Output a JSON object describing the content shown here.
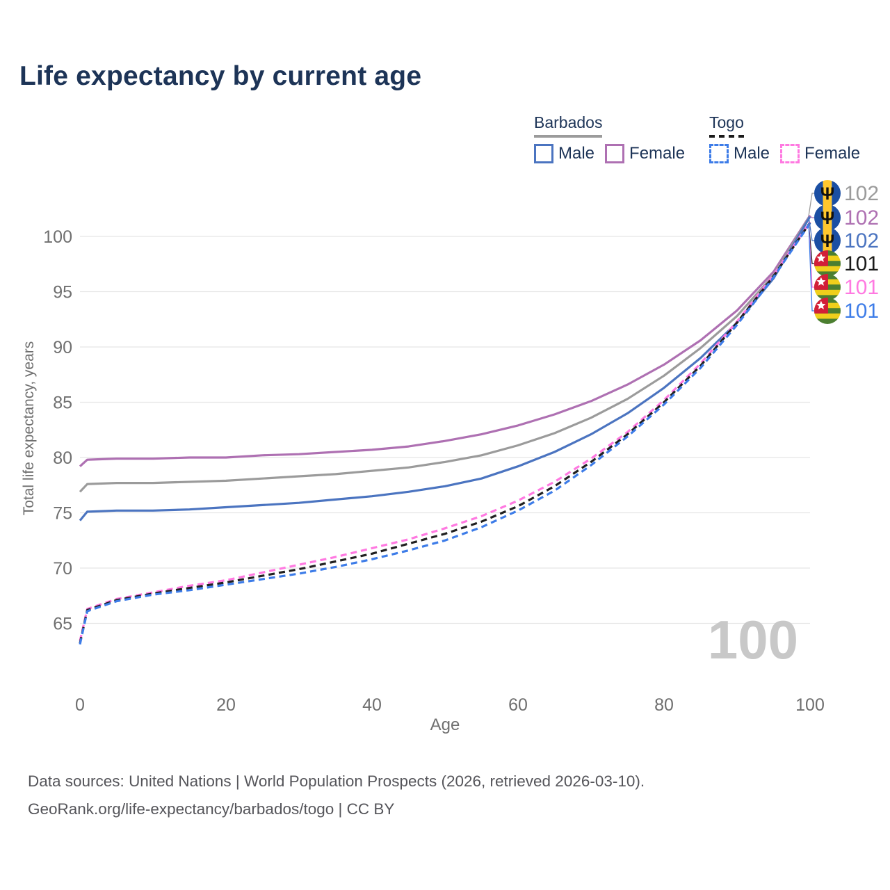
{
  "title": "Life expectancy by current age",
  "watermark": "100",
  "legend": {
    "groups": [
      {
        "country": "Barbados",
        "line_style": "solid",
        "underline_color": "#9b9b9b",
        "items": [
          {
            "label": "Male",
            "color": "#4b74c0",
            "dashed": false
          },
          {
            "label": "Female",
            "color": "#ae70b2",
            "dashed": false
          }
        ]
      },
      {
        "country": "Togo",
        "line_style": "dashed",
        "underline_color": "#1a1a1a",
        "items": [
          {
            "label": "Male",
            "color": "#3d7ce8",
            "dashed": true
          },
          {
            "label": "Female",
            "color": "#ff79e1",
            "dashed": true
          }
        ]
      }
    ]
  },
  "x_axis": {
    "label": "Age",
    "ticks": [
      0,
      20,
      40,
      60,
      80,
      100
    ],
    "range": [
      0,
      100
    ]
  },
  "y_axis": {
    "label": "Total life expectancy, years",
    "ticks": [
      65,
      70,
      75,
      80,
      85,
      90,
      95,
      100
    ],
    "range": [
      62.5,
      103
    ]
  },
  "end_labels": [
    {
      "flag": "barbados",
      "series": "barbados_both",
      "value": "102",
      "color": "#9b9b9b"
    },
    {
      "flag": "barbados",
      "series": "barbados_female",
      "value": "102",
      "color": "#ae70b2"
    },
    {
      "flag": "barbados",
      "series": "barbados_male",
      "value": "102",
      "color": "#4b74c0"
    },
    {
      "flag": "togo",
      "series": "togo_both",
      "value": "101",
      "color": "#1a1a1a"
    },
    {
      "flag": "togo",
      "series": "togo_female",
      "value": "101",
      "color": "#ff79e1"
    },
    {
      "flag": "togo",
      "series": "togo_male",
      "value": "101",
      "color": "#3d7ce8"
    }
  ],
  "footer": {
    "line1": "Data sources: United Nations | World Population Prospects (2026, retrieved 2026-03-10).",
    "line2": "GeoRank.org/life-expectancy/barbados/togo | CC BY"
  },
  "chart_data": {
    "type": "line",
    "xlabel": "Age",
    "ylabel": "Total life expectancy, years",
    "xlim": [
      0,
      100
    ],
    "ylim": [
      62.5,
      103
    ],
    "grid": "horizontal",
    "x": [
      0,
      1,
      5,
      10,
      15,
      20,
      25,
      30,
      35,
      40,
      45,
      50,
      55,
      60,
      65,
      70,
      75,
      80,
      85,
      90,
      95,
      100
    ],
    "series": [
      {
        "name": "Barbados Female",
        "key": "barbados_female",
        "color": "#ae70b2",
        "dash": null,
        "values": [
          79.2,
          79.8,
          79.9,
          79.9,
          80.0,
          80.0,
          80.2,
          80.3,
          80.5,
          80.7,
          81.0,
          81.5,
          82.1,
          82.9,
          83.9,
          85.1,
          86.6,
          88.4,
          90.6,
          93.3,
          96.8,
          101.9
        ]
      },
      {
        "name": "Barbados Both sexes",
        "key": "barbados_both",
        "color": "#9b9b9b",
        "dash": null,
        "values": [
          76.9,
          77.6,
          77.7,
          77.7,
          77.8,
          77.9,
          78.1,
          78.3,
          78.5,
          78.8,
          79.1,
          79.6,
          80.2,
          81.1,
          82.2,
          83.6,
          85.3,
          87.4,
          89.9,
          92.8,
          96.5,
          101.85
        ]
      },
      {
        "name": "Barbados Male",
        "key": "barbados_male",
        "color": "#4b74c0",
        "dash": null,
        "values": [
          74.3,
          75.1,
          75.2,
          75.2,
          75.3,
          75.5,
          75.7,
          75.9,
          76.2,
          76.5,
          76.9,
          77.4,
          78.1,
          79.2,
          80.5,
          82.1,
          84.0,
          86.3,
          89.0,
          92.2,
          96.2,
          101.8
        ]
      },
      {
        "name": "Togo Female",
        "key": "togo_female",
        "color": "#ff79e1",
        "dash": "9 6",
        "values": [
          63.4,
          66.3,
          67.2,
          67.8,
          68.4,
          68.9,
          69.6,
          70.3,
          71.0,
          71.8,
          72.6,
          73.6,
          74.7,
          76.1,
          77.8,
          79.9,
          82.3,
          85.2,
          88.5,
          92.3,
          96.5,
          101.3
        ]
      },
      {
        "name": "Togo Both sexes",
        "key": "togo_both",
        "color": "#202020",
        "dash": "9 6",
        "values": [
          63.2,
          66.2,
          67.1,
          67.7,
          68.2,
          68.7,
          69.3,
          69.9,
          70.6,
          71.3,
          72.2,
          73.1,
          74.2,
          75.6,
          77.4,
          79.6,
          82.1,
          85.0,
          88.3,
          92.2,
          96.4,
          101.25
        ]
      },
      {
        "name": "Togo Male",
        "key": "togo_male",
        "color": "#3d7ce8",
        "dash": "9 6",
        "values": [
          63.1,
          66.1,
          67.0,
          67.6,
          68.0,
          68.5,
          69.0,
          69.5,
          70.1,
          70.8,
          71.6,
          72.5,
          73.7,
          75.2,
          77.0,
          79.3,
          81.9,
          84.8,
          88.1,
          92.0,
          96.3,
          101.2
        ]
      }
    ]
  },
  "colors": {
    "grid": "#e5e5e5",
    "tick_text": "#6f6f6f",
    "title": "#1d3457",
    "watermark": "#c8c8c8",
    "footer_text": "#55555a",
    "flag_barbados_blue": "#1b4fa3",
    "flag_barbados_yellow": "#ffc72e",
    "flag_trident": "#101010",
    "flag_togo_green": "#4c7f31",
    "flag_togo_yellow": "#f0cf1c",
    "flag_togo_red": "#d21e38",
    "flag_togo_star": "#ffffff"
  }
}
